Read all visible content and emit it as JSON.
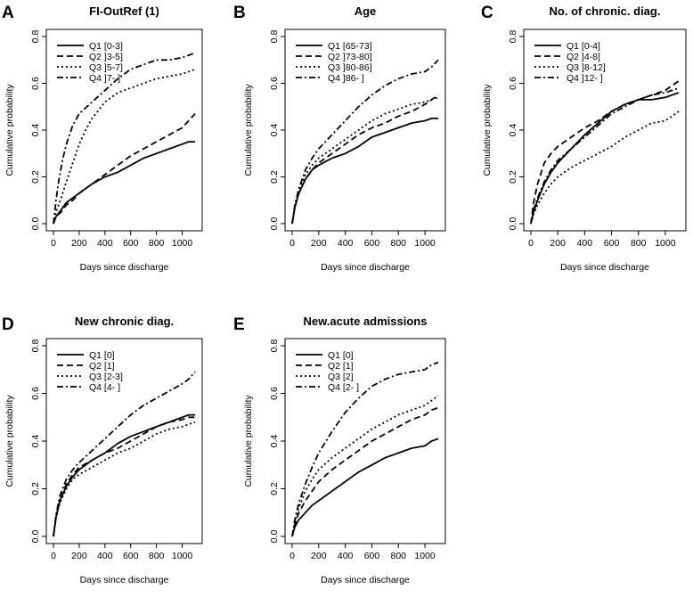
{
  "chart_data": [
    {
      "type": "line",
      "panel": "A",
      "title": "FI-OutRef (1)",
      "xlabel": "Days since discharge",
      "ylabel": "Cumulative probability",
      "xlim": [
        0,
        1100
      ],
      "ylim": [
        0,
        0.8
      ],
      "xticks": [
        "0",
        "200",
        "400",
        "600",
        "800",
        "1000"
      ],
      "yticks": [
        "0.0",
        "0.2",
        "0.4",
        "0.6",
        "0.8"
      ],
      "legend_position": "top-left",
      "series": [
        {
          "name": "Q1 [0-3]",
          "dash": "solid",
          "x": [
            0,
            20,
            60,
            100,
            150,
            200,
            300,
            400,
            500,
            600,
            700,
            800,
            900,
            1000,
            1050,
            1100
          ],
          "y": [
            0,
            0.03,
            0.06,
            0.09,
            0.11,
            0.13,
            0.17,
            0.2,
            0.22,
            0.25,
            0.28,
            0.3,
            0.32,
            0.34,
            0.35,
            0.35
          ]
        },
        {
          "name": "Q2 ]3-5]",
          "dash": "dashed",
          "x": [
            0,
            20,
            60,
            100,
            150,
            200,
            300,
            400,
            500,
            600,
            700,
            800,
            900,
            1000,
            1050,
            1100
          ],
          "y": [
            0,
            0.03,
            0.05,
            0.08,
            0.1,
            0.13,
            0.17,
            0.21,
            0.25,
            0.29,
            0.32,
            0.35,
            0.38,
            0.41,
            0.44,
            0.47
          ]
        },
        {
          "name": "Q3 ]5-7]",
          "dash": "dotted",
          "x": [
            0,
            20,
            60,
            100,
            150,
            200,
            250,
            300,
            400,
            500,
            600,
            700,
            800,
            900,
            1000,
            1050,
            1100
          ],
          "y": [
            0,
            0.05,
            0.11,
            0.18,
            0.26,
            0.34,
            0.4,
            0.45,
            0.52,
            0.56,
            0.58,
            0.6,
            0.62,
            0.63,
            0.64,
            0.65,
            0.66
          ]
        },
        {
          "name": "Q4 ]7- ]",
          "dash": "dashdot",
          "x": [
            0,
            20,
            40,
            70,
            100,
            150,
            200,
            300,
            400,
            500,
            600,
            700,
            800,
            900,
            1000,
            1050,
            1100
          ],
          "y": [
            0,
            0.1,
            0.18,
            0.27,
            0.34,
            0.42,
            0.47,
            0.52,
            0.57,
            0.62,
            0.66,
            0.68,
            0.7,
            0.7,
            0.71,
            0.72,
            0.73
          ]
        }
      ]
    },
    {
      "type": "line",
      "panel": "B",
      "title": "Age",
      "xlabel": "Days since discharge",
      "ylabel": "Cumulative probability",
      "xlim": [
        0,
        1100
      ],
      "ylim": [
        0,
        0.8
      ],
      "xticks": [
        "0",
        "200",
        "400",
        "600",
        "800",
        "1000"
      ],
      "yticks": [
        "0.0",
        "0.2",
        "0.4",
        "0.6",
        "0.8"
      ],
      "legend_position": "top-left",
      "series": [
        {
          "name": "Q1 [65-73]",
          "dash": "solid",
          "x": [
            0,
            20,
            50,
            100,
            150,
            200,
            300,
            400,
            500,
            600,
            700,
            800,
            900,
            1000,
            1050,
            1100
          ],
          "y": [
            0,
            0.07,
            0.13,
            0.19,
            0.23,
            0.25,
            0.28,
            0.3,
            0.33,
            0.37,
            0.39,
            0.41,
            0.43,
            0.44,
            0.45,
            0.45
          ]
        },
        {
          "name": "Q2 ]73-80]",
          "dash": "dashed",
          "x": [
            0,
            20,
            50,
            100,
            150,
            200,
            300,
            400,
            500,
            600,
            700,
            800,
            900,
            1000,
            1050,
            1100
          ],
          "y": [
            0,
            0.07,
            0.13,
            0.19,
            0.23,
            0.26,
            0.3,
            0.34,
            0.38,
            0.41,
            0.43,
            0.46,
            0.48,
            0.51,
            0.53,
            0.55
          ]
        },
        {
          "name": "Q3 ]80-86]",
          "dash": "dotted",
          "x": [
            0,
            20,
            50,
            100,
            150,
            200,
            300,
            400,
            500,
            600,
            700,
            800,
            900,
            1000,
            1050,
            1100
          ],
          "y": [
            0,
            0.07,
            0.14,
            0.21,
            0.25,
            0.28,
            0.32,
            0.36,
            0.4,
            0.44,
            0.47,
            0.49,
            0.51,
            0.52,
            0.53,
            0.54
          ]
        },
        {
          "name": "Q4 ]86- ]",
          "dash": "dashdot",
          "x": [
            0,
            20,
            50,
            100,
            150,
            200,
            300,
            400,
            500,
            600,
            700,
            800,
            900,
            1000,
            1050,
            1100
          ],
          "y": [
            0,
            0.08,
            0.15,
            0.23,
            0.28,
            0.32,
            0.38,
            0.44,
            0.5,
            0.55,
            0.59,
            0.62,
            0.64,
            0.65,
            0.67,
            0.7
          ]
        }
      ]
    },
    {
      "type": "line",
      "panel": "C",
      "title": "No. of chronic. diag.",
      "xlabel": "Days since discharge",
      "ylabel": "Cumulative probability",
      "xlim": [
        0,
        1100
      ],
      "ylim": [
        0,
        0.8
      ],
      "xticks": [
        "0",
        "200",
        "400",
        "600",
        "800",
        "1000"
      ],
      "yticks": [
        "0.0",
        "0.2",
        "0.4",
        "0.6",
        "0.8"
      ],
      "legend_position": "top-left",
      "series": [
        {
          "name": "Q1 [0-4]",
          "dash": "solid",
          "x": [
            0,
            20,
            50,
            100,
            150,
            200,
            300,
            400,
            500,
            600,
            700,
            800,
            900,
            1000,
            1050,
            1100
          ],
          "y": [
            0,
            0.05,
            0.1,
            0.17,
            0.22,
            0.26,
            0.32,
            0.38,
            0.43,
            0.48,
            0.51,
            0.53,
            0.53,
            0.54,
            0.55,
            0.56
          ]
        },
        {
          "name": "Q2 ]4-8]",
          "dash": "dashed",
          "x": [
            0,
            20,
            50,
            100,
            150,
            200,
            300,
            400,
            500,
            600,
            700,
            800,
            900,
            1000,
            1050,
            1100
          ],
          "y": [
            0,
            0.09,
            0.17,
            0.26,
            0.3,
            0.33,
            0.37,
            0.41,
            0.44,
            0.48,
            0.51,
            0.53,
            0.55,
            0.57,
            0.59,
            0.61
          ]
        },
        {
          "name": "Q3 ]8-12]",
          "dash": "dotted",
          "x": [
            0,
            20,
            50,
            100,
            150,
            200,
            300,
            400,
            500,
            600,
            700,
            800,
            900,
            1000,
            1050,
            1100
          ],
          "y": [
            0,
            0.04,
            0.08,
            0.13,
            0.17,
            0.2,
            0.24,
            0.27,
            0.3,
            0.33,
            0.37,
            0.4,
            0.43,
            0.44,
            0.46,
            0.48
          ]
        },
        {
          "name": "Q4 ]12- ]",
          "dash": "dashdot",
          "x": [
            0,
            20,
            50,
            100,
            150,
            200,
            300,
            400,
            500,
            600,
            700,
            800,
            900,
            1000,
            1050,
            1100
          ],
          "y": [
            0,
            0.06,
            0.11,
            0.18,
            0.23,
            0.27,
            0.32,
            0.37,
            0.42,
            0.47,
            0.5,
            0.53,
            0.55,
            0.56,
            0.57,
            0.58
          ]
        }
      ]
    },
    {
      "type": "line",
      "panel": "D",
      "title": "New chronic diag.",
      "xlabel": "Days since discharge",
      "ylabel": "Cumulative probability",
      "xlim": [
        0,
        1100
      ],
      "ylim": [
        0,
        0.8
      ],
      "xticks": [
        "0",
        "200",
        "400",
        "600",
        "800",
        "1000"
      ],
      "yticks": [
        "0.0",
        "0.2",
        "0.4",
        "0.6",
        "0.8"
      ],
      "legend_position": "top-left",
      "series": [
        {
          "name": "Q1 [0]",
          "dash": "solid",
          "x": [
            0,
            20,
            50,
            100,
            150,
            200,
            300,
            400,
            500,
            600,
            700,
            800,
            900,
            1000,
            1050,
            1100
          ],
          "y": [
            0,
            0.08,
            0.15,
            0.21,
            0.25,
            0.28,
            0.32,
            0.35,
            0.39,
            0.42,
            0.44,
            0.46,
            0.48,
            0.5,
            0.51,
            0.51
          ]
        },
        {
          "name": "Q2 [1]",
          "dash": "dashed",
          "x": [
            0,
            20,
            50,
            100,
            150,
            200,
            300,
            400,
            500,
            600,
            700,
            800,
            900,
            1000,
            1050,
            1100
          ],
          "y": [
            0,
            0.08,
            0.15,
            0.22,
            0.26,
            0.29,
            0.32,
            0.35,
            0.37,
            0.4,
            0.43,
            0.46,
            0.48,
            0.49,
            0.5,
            0.5
          ]
        },
        {
          "name": "Q3 [2-3]",
          "dash": "dotted",
          "x": [
            0,
            20,
            50,
            100,
            150,
            200,
            300,
            400,
            500,
            600,
            700,
            800,
            900,
            1000,
            1050,
            1100
          ],
          "y": [
            0,
            0.08,
            0.14,
            0.2,
            0.24,
            0.26,
            0.29,
            0.32,
            0.35,
            0.37,
            0.4,
            0.43,
            0.45,
            0.46,
            0.47,
            0.48
          ]
        },
        {
          "name": "Q4 [4- ]",
          "dash": "dashdot",
          "x": [
            0,
            20,
            50,
            100,
            150,
            200,
            300,
            400,
            500,
            600,
            700,
            800,
            900,
            1000,
            1050,
            1100
          ],
          "y": [
            0,
            0.09,
            0.17,
            0.24,
            0.28,
            0.31,
            0.36,
            0.41,
            0.46,
            0.51,
            0.55,
            0.58,
            0.61,
            0.64,
            0.66,
            0.69
          ]
        }
      ]
    },
    {
      "type": "line",
      "panel": "E",
      "title": "New.acute admissions",
      "xlabel": "Days since discharge",
      "ylabel": "Cumulative probability",
      "xlim": [
        0,
        1100
      ],
      "ylim": [
        0,
        0.8
      ],
      "xticks": [
        "0",
        "200",
        "400",
        "600",
        "800",
        "1000"
      ],
      "yticks": [
        "0.0",
        "0.2",
        "0.4",
        "0.6",
        "0.8"
      ],
      "legend_position": "top-left",
      "series": [
        {
          "name": "Q1 [0]",
          "dash": "solid",
          "x": [
            0,
            20,
            50,
            100,
            150,
            200,
            300,
            400,
            500,
            600,
            700,
            800,
            900,
            1000,
            1050,
            1100
          ],
          "y": [
            0,
            0.04,
            0.07,
            0.1,
            0.13,
            0.15,
            0.19,
            0.23,
            0.27,
            0.3,
            0.33,
            0.35,
            0.37,
            0.38,
            0.4,
            0.41
          ]
        },
        {
          "name": "Q2 [1]",
          "dash": "dashed",
          "x": [
            0,
            20,
            50,
            100,
            150,
            200,
            300,
            400,
            500,
            600,
            700,
            800,
            900,
            1000,
            1050,
            1100
          ],
          "y": [
            0,
            0.05,
            0.1,
            0.15,
            0.19,
            0.23,
            0.28,
            0.32,
            0.36,
            0.4,
            0.43,
            0.46,
            0.49,
            0.51,
            0.53,
            0.54
          ]
        },
        {
          "name": "Q3 [2]",
          "dash": "dotted",
          "x": [
            0,
            20,
            50,
            100,
            150,
            200,
            300,
            400,
            500,
            600,
            700,
            800,
            900,
            1000,
            1050,
            1100
          ],
          "y": [
            0,
            0.06,
            0.12,
            0.19,
            0.24,
            0.28,
            0.33,
            0.37,
            0.41,
            0.45,
            0.48,
            0.51,
            0.53,
            0.55,
            0.57,
            0.59
          ]
        },
        {
          "name": "Q4 [2- ]",
          "dash": "dashdot",
          "x": [
            0,
            20,
            50,
            100,
            150,
            200,
            300,
            400,
            500,
            600,
            700,
            800,
            900,
            1000,
            1050,
            1100
          ],
          "y": [
            0,
            0.07,
            0.14,
            0.22,
            0.29,
            0.35,
            0.44,
            0.52,
            0.58,
            0.63,
            0.66,
            0.68,
            0.69,
            0.7,
            0.72,
            0.73
          ]
        }
      ]
    }
  ]
}
